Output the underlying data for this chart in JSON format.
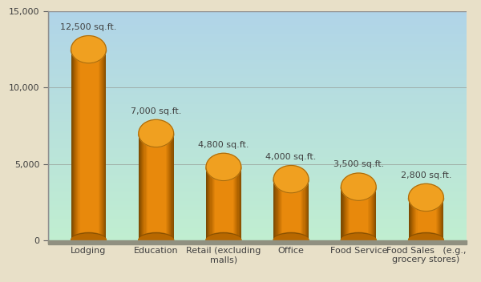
{
  "categories": [
    "Lodging",
    "Education",
    "Retail (excluding\nmalls)",
    "Office",
    "Food Service",
    "Food Sales   (e.g.,\ngrocery stores)"
  ],
  "values": [
    12500,
    7000,
    4800,
    4000,
    3500,
    2800
  ],
  "labels": [
    "12,500 sq.ft.",
    "7,000 sq.ft.",
    "4,800 sq.ft.",
    "4,000 sq.ft.",
    "3,500 sq.ft.",
    "2,800 sq.ft."
  ],
  "ylim": [
    0,
    15000
  ],
  "yticks": [
    0,
    5000,
    10000,
    15000
  ],
  "ytick_labels": [
    "0",
    "5,000",
    "10,000",
    "15,000"
  ],
  "cylinder_color": "#E8890C",
  "cylinder_top_color": "#F0A020",
  "cylinder_dark_color": "#B86800",
  "cylinder_shadow_color": "#7A4800",
  "background_top": "#B0D4E8",
  "background_bottom": "#C0EED0",
  "floor_color": "#909080",
  "outer_bg": "#E8E0C8",
  "border_color": "#909090",
  "label_color": "#404040",
  "tick_color": "#404040",
  "label_fontsize": 8,
  "tick_fontsize": 8,
  "bar_width": 0.52,
  "ellipse_ratio": 0.12
}
